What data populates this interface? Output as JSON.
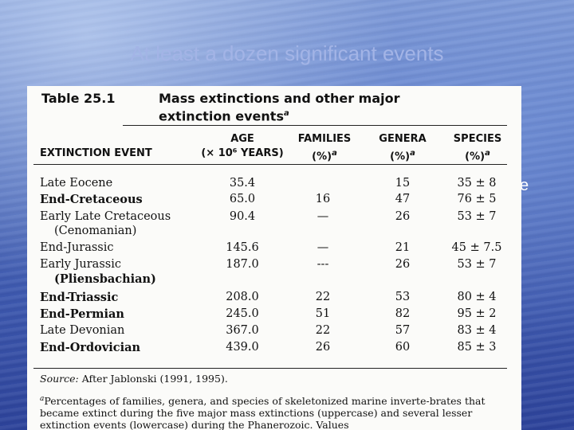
{
  "slide": {
    "title": "At least a dozen significant events",
    "body_fragment": "e"
  },
  "table": {
    "number": "Table 25.1",
    "caption_line1": "Mass extinctions and other major",
    "caption_line2": "extinction events",
    "caption_mark": "a",
    "headers": {
      "event": "EXTINCTION EVENT",
      "age_line1": "AGE",
      "age_line2": "(× 10⁶ YEARS)",
      "families": "FAMILIES",
      "families_unit": "(%)",
      "genera": "GENERA",
      "genera_unit": "(%)",
      "species": "SPECIES",
      "species_unit": "(%)",
      "unit_mark": "a"
    },
    "rows": [
      {
        "event": "Late Eocene",
        "age": "35.4",
        "families": "",
        "genera": "15",
        "species": "35 ± 8"
      },
      {
        "event": "End-Cretaceous",
        "age": "65.0",
        "families": "16",
        "genera": "47",
        "species": "76 ± 5"
      },
      {
        "event": "Early Late Cretaceous",
        "sub": "(Cenomanian)",
        "age": "90.4",
        "families": "—",
        "genera": "26",
        "species": "53 ± 7"
      },
      {
        "event": "End-Jurassic",
        "age": "145.6",
        "families": "—",
        "genera": "21",
        "species": "45 ± 7.5"
      },
      {
        "event": "Early Jurassic",
        "sub": "(Pliensbachian)",
        "age": "187.0",
        "families": "---",
        "genera": "26",
        "species": "53 ± 7"
      },
      {
        "event": "End-Triassic",
        "age": "208.0",
        "families": "22",
        "genera": "53",
        "species": "80 ± 4"
      },
      {
        "event": "End-Permian",
        "age": "245.0",
        "families": "51",
        "genera": "82",
        "species": "95 ± 2"
      },
      {
        "event": "Late Devonian",
        "age": "367.0",
        "families": "22",
        "genera": "57",
        "species": "83 ± 4"
      },
      {
        "event": "End-Ordovician",
        "age": "439.0",
        "families": "26",
        "genera": "60",
        "species": "85 ± 3"
      }
    ],
    "source_label": "Source:",
    "source_text": "After Jablonski (1991, 1995).",
    "footnote_mark": "a",
    "footnote": "Percentages of families, genera, and species of skeletonized marine inverte-brates that became extinct during the five major mass extinctions (uppercase) and several lesser extinction events (lowercase) during the Phanerozoic. Values"
  }
}
